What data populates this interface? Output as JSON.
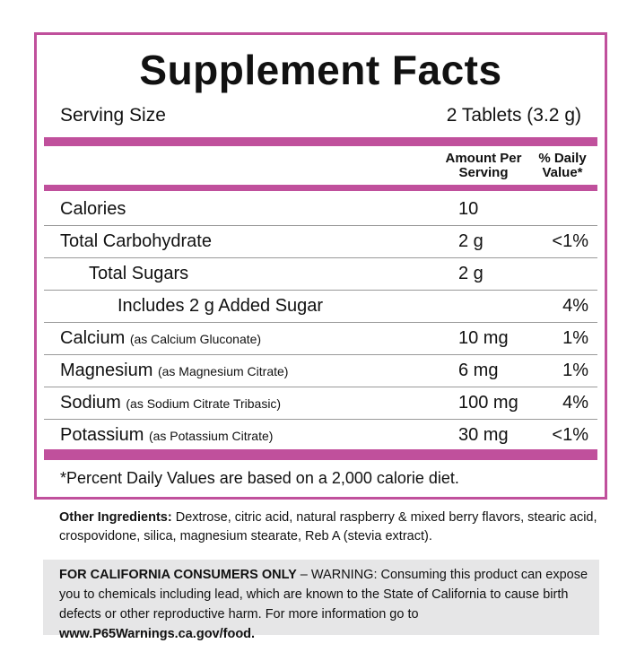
{
  "title": "Supplement Facts",
  "serving": {
    "label": "Serving Size",
    "value": "2 Tablets (3.2 g)"
  },
  "headers": {
    "amount": "Amount Per Serving",
    "dv": "% Daily Value*"
  },
  "rows": [
    {
      "name": "Calories",
      "sub": "",
      "amount": "10",
      "dv": "",
      "indent": 0
    },
    {
      "name": "Total Carbohydrate",
      "sub": "",
      "amount": "2 g",
      "dv": "<1%",
      "indent": 0
    },
    {
      "name": "Total Sugars",
      "sub": "",
      "amount": "2 g",
      "dv": "",
      "indent": 1
    },
    {
      "name": "Includes 2 g Added Sugar",
      "sub": "",
      "amount": "",
      "dv": "4%",
      "indent": 2
    },
    {
      "name": "Calcium",
      "sub": "(as Calcium Gluconate)",
      "amount": "10 mg",
      "dv": "1%",
      "indent": 0
    },
    {
      "name": "Magnesium",
      "sub": "(as Magnesium Citrate)",
      "amount": "6 mg",
      "dv": "1%",
      "indent": 0
    },
    {
      "name": "Sodium",
      "sub": "(as Sodium Citrate Tribasic)",
      "amount": "100 mg",
      "dv": "4%",
      "indent": 0
    },
    {
      "name": "Potassium",
      "sub": "(as Potassium Citrate)",
      "amount": "30 mg",
      "dv": "<1%",
      "indent": 0
    }
  ],
  "footnote": "*Percent Daily Values are based on a 2,000 calorie diet.",
  "other": {
    "label": "Other Ingredients:",
    "text": "Dextrose, citric acid, natural raspberry & mixed berry flavors, stearic acid, crospovidone, silica, magnesium stearate, Reb A (stevia extract)."
  },
  "warning": {
    "label": "FOR CALIFORNIA CONSUMERS ONLY",
    "text": " – WARNING: Consuming this product can expose you to chemicals including lead, which are known to the State of California to cause birth defects or other reproductive harm. For more information go to ",
    "link": "www.P65Warnings.ca.gov/food."
  },
  "colors": {
    "accent": "#c0509c"
  }
}
